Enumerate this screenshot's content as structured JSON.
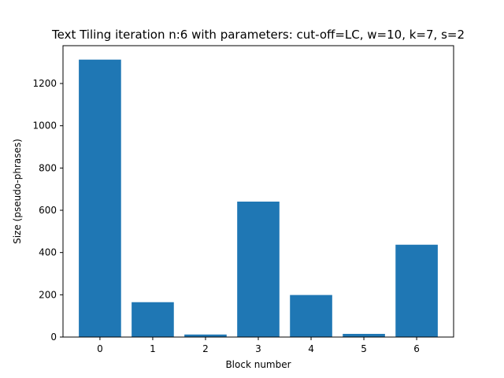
{
  "chart_data": {
    "type": "bar",
    "title": "Text Tiling iteration n:6 with parameters: cut-off=LC, w=10, k=7, s=2",
    "xlabel": "Block number",
    "ylabel": "Size (pseudo-phrases)",
    "categories": [
      "0",
      "1",
      "2",
      "3",
      "4",
      "5",
      "6"
    ],
    "values": [
      1313,
      165,
      12,
      641,
      199,
      15,
      437
    ],
    "ylim": [
      0,
      1379
    ],
    "yticks": [
      0,
      200,
      400,
      600,
      800,
      1000,
      1200
    ],
    "grid": false,
    "bar_color": "#1f77b4"
  }
}
